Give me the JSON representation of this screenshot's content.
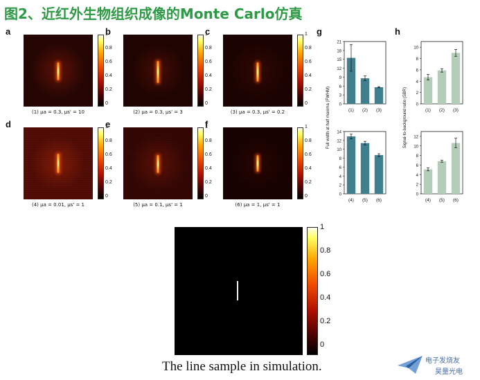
{
  "title": "图2、近红外生物组织成像的Monte Carlo仿真",
  "panels": [
    {
      "letter": "a",
      "label": "(1) μa = 0.3, μs' = 10"
    },
    {
      "letter": "b",
      "label": "(2) μa = 0.3, μs' = 3"
    },
    {
      "letter": "c",
      "label": "(3) μa = 0.3, μs' = 0.2"
    },
    {
      "letter": "d",
      "label": "(4) μa = 0.01, μs' = 1"
    },
    {
      "letter": "e",
      "label": "(5) μa = 0.1, μs' = 1"
    },
    {
      "letter": "f",
      "label": "(6) μa = 1, μs' = 1"
    }
  ],
  "colorbar_ticks": [
    "1",
    "0.8",
    "0.6",
    "0.4",
    "0.2",
    "0"
  ],
  "letters": {
    "g": "g",
    "h": "h"
  },
  "chart_data": [
    {
      "type": "bar",
      "panel": "g-top",
      "categories": [
        "(1)",
        "(2)",
        "(3)"
      ],
      "values": [
        15.5,
        8.6,
        5.6
      ],
      "errors": [
        4.5,
        0.8,
        0.2
      ],
      "ylim": [
        0,
        21
      ],
      "yticks": [
        "0",
        "3",
        "6",
        "9",
        "12",
        "15",
        "18",
        "21"
      ],
      "ylabel": "Full width at half maxima (FWHM)",
      "color": "#3f7f8e"
    },
    {
      "type": "bar",
      "panel": "g-bottom",
      "categories": [
        "(4)",
        "(5)",
        "(6)"
      ],
      "values": [
        12.9,
        11.4,
        8.7
      ],
      "errors": [
        0.5,
        0.4,
        0.3
      ],
      "ylim": [
        0,
        14
      ],
      "yticks": [
        "0",
        "2",
        "4",
        "6",
        "8",
        "10",
        "12",
        "14"
      ],
      "ylabel": "",
      "color": "#3f7f8e"
    },
    {
      "type": "bar",
      "panel": "h-top",
      "categories": [
        "(1)",
        "(2)",
        "(3)"
      ],
      "values": [
        4.7,
        5.9,
        9.0
      ],
      "errors": [
        0.5,
        0.3,
        0.6
      ],
      "ylim": [
        0,
        11
      ],
      "yticks": [
        "0",
        "2",
        "4",
        "6",
        "8",
        "10"
      ],
      "ylabel": "Signal-to-background ratio (SBR)",
      "color": "#b4cdb9"
    },
    {
      "type": "bar",
      "panel": "h-bottom",
      "categories": [
        "(4)",
        "(5)",
        "(6)"
      ],
      "values": [
        5.1,
        6.8,
        10.6
      ],
      "errors": [
        0.3,
        0.2,
        1.0
      ],
      "ylim": [
        0,
        13
      ],
      "yticks": [
        "0",
        "2",
        "4",
        "6",
        "8",
        "10",
        "12"
      ],
      "ylabel": "",
      "color": "#b4cdb9"
    }
  ],
  "bottom": {
    "colorbar_ticks": [
      "1",
      "0.8",
      "0.6",
      "0.4",
      "0.2",
      "0"
    ],
    "caption": "The line sample in simulation."
  },
  "watermark": {
    "line1": "电子发烧友",
    "line2": "昊量光电"
  }
}
